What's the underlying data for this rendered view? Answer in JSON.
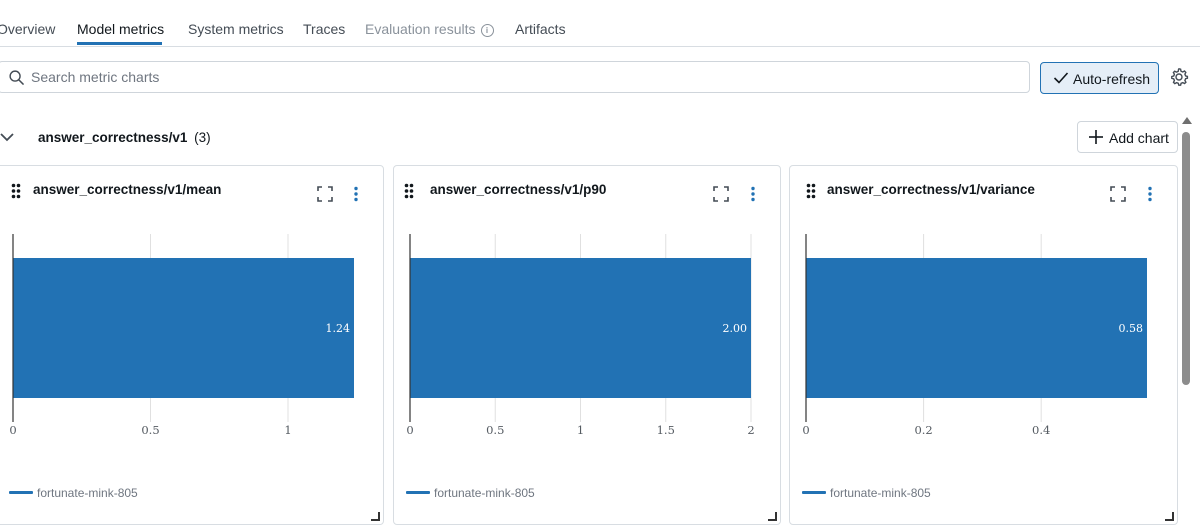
{
  "tabs": [
    {
      "label": "Overview",
      "active": false
    },
    {
      "label": "Model metrics",
      "active": true
    },
    {
      "label": "System metrics",
      "active": false
    },
    {
      "label": "Traces",
      "active": false
    },
    {
      "label": "Evaluation results",
      "active": false,
      "disabled": true,
      "icon": "info-icon"
    },
    {
      "label": "Artifacts",
      "active": false
    }
  ],
  "search": {
    "placeholder": "Search metric charts",
    "value": "",
    "icon": "search-icon"
  },
  "toolbar": {
    "auto_refresh_label": "Auto-refresh",
    "auto_refresh_on": true,
    "settings_icon": "gear-icon"
  },
  "section": {
    "title": "answer_correctness/v1",
    "count": "(3)",
    "expanded": true,
    "add_chart_label": "Add chart"
  },
  "colors": {
    "accent": "#2272b4",
    "bar": "#2272b4",
    "grid": "#e0e0e0",
    "axis": "#333333"
  },
  "charts": [
    {
      "title": "answer_correctness/v1/mean",
      "legend": "fortunate-mink-805"
    },
    {
      "title": "answer_correctness/v1/p90",
      "legend": "fortunate-mink-805"
    },
    {
      "title": "answer_correctness/v1/variance",
      "legend": "fortunate-mink-805"
    }
  ],
  "chart_data": [
    {
      "type": "bar",
      "orientation": "horizontal",
      "title": "answer_correctness/v1/mean",
      "series": [
        {
          "name": "fortunate-mink-805",
          "values": [
            1.24
          ]
        }
      ],
      "value_labels": [
        "1.24"
      ],
      "xlim": [
        0,
        1.24
      ],
      "xticks": [
        0,
        0.5,
        1
      ],
      "xtick_labels": [
        "0",
        "0.5",
        "1"
      ],
      "grid": true,
      "legend": "bottom-left"
    },
    {
      "type": "bar",
      "orientation": "horizontal",
      "title": "answer_correctness/v1/p90",
      "series": [
        {
          "name": "fortunate-mink-805",
          "values": [
            2.0
          ]
        }
      ],
      "value_labels": [
        "2.00"
      ],
      "xlim": [
        0,
        2.0
      ],
      "xticks": [
        0,
        0.5,
        1,
        1.5,
        2
      ],
      "xtick_labels": [
        "0",
        "0.5",
        "1",
        "1.5",
        "2"
      ],
      "grid": true,
      "legend": "bottom-left"
    },
    {
      "type": "bar",
      "orientation": "horizontal",
      "title": "answer_correctness/v1/variance",
      "series": [
        {
          "name": "fortunate-mink-805",
          "values": [
            0.58
          ]
        }
      ],
      "value_labels": [
        "0.58"
      ],
      "xlim": [
        0,
        0.58
      ],
      "xticks": [
        0,
        0.2,
        0.4
      ],
      "xtick_labels": [
        "0",
        "0.2",
        "0.4"
      ],
      "grid": true,
      "legend": "bottom-left"
    }
  ]
}
